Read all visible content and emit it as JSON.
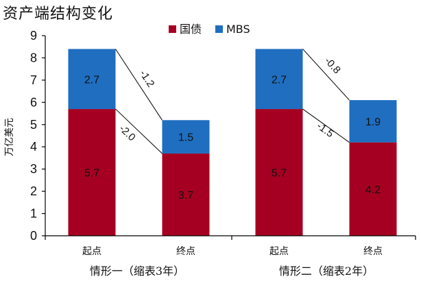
{
  "chart_data": {
    "type": "bar",
    "stacked": true,
    "title": "资产端结构变化",
    "ylabel": "万亿美元",
    "ylim": [
      0,
      9
    ],
    "yticks": [
      "0",
      "1",
      "2",
      "3",
      "4",
      "5",
      "6",
      "7",
      "8",
      "9"
    ],
    "categories": [
      "起点",
      "终点",
      "起点",
      "终点"
    ],
    "groups": [
      "情形一（缩表3年）",
      "情形二（缩表2年）"
    ],
    "series": [
      {
        "name": "国债",
        "color": "#A50021",
        "values": [
          5.7,
          3.7,
          5.7,
          4.2
        ],
        "labels": [
          "5.7",
          "3.7",
          "5.7",
          "4.2"
        ]
      },
      {
        "name": "MBS",
        "color": "#1F6EC0",
        "values": [
          2.7,
          1.5,
          2.7,
          1.9
        ],
        "labels": [
          "2.7",
          "1.5",
          "2.7",
          "1.9"
        ]
      }
    ],
    "annotations": [
      {
        "group": 0,
        "series": "MBS",
        "text": "-1.2"
      },
      {
        "group": 0,
        "series": "国债",
        "text": "-2.0"
      },
      {
        "group": 1,
        "series": "MBS",
        "text": "-0.8"
      },
      {
        "group": 1,
        "series": "国债",
        "text": "-1.5"
      }
    ],
    "legend_position": "top-center",
    "grid": false
  }
}
